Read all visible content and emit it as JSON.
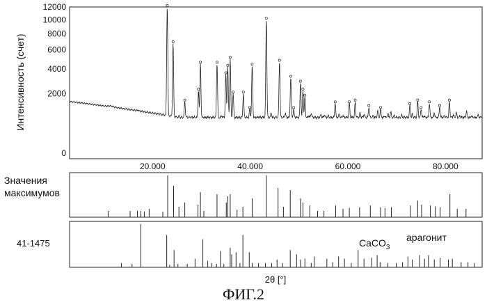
{
  "caption": "ФИГ.2",
  "chart_data": [
    {
      "type": "line",
      "ylabel": "Интенсивность (счет)",
      "xlim": [
        3,
        87.5
      ],
      "y_ticks": [
        0,
        2000,
        4000,
        6000,
        8000,
        10000,
        12000
      ],
      "y_scale": "sqrt",
      "grid": false,
      "series": [
        {
          "points": [
            [
              3,
              1500
            ],
            [
              5,
              1300
            ],
            [
              7,
              1100
            ],
            [
              9,
              900
            ],
            [
              10.5,
              920
            ],
            [
              11.5,
              1250
            ],
            [
              12.2,
              1150
            ],
            [
              13.5,
              870
            ],
            [
              16.2,
              800
            ],
            [
              17,
              1050
            ],
            [
              17.8,
              760
            ],
            [
              18.8,
              920
            ],
            [
              19.6,
              880
            ],
            [
              20.9,
              700
            ],
            [
              22,
              720
            ],
            [
              23,
              12000
            ],
            [
              24.2,
              6800
            ],
            [
              25.5,
              800
            ],
            [
              26.6,
              1500
            ],
            [
              28,
              680
            ],
            [
              29.4,
              2200
            ],
            [
              29.8,
              4500
            ],
            [
              31.3,
              700
            ],
            [
              33.2,
              4500
            ],
            [
              34.2,
              800
            ],
            [
              35,
              3500
            ],
            [
              35.4,
              4200
            ],
            [
              35.9,
              5000
            ],
            [
              36.5,
              2000
            ],
            [
              37.3,
              700
            ],
            [
              38.6,
              2000
            ],
            [
              39.9,
              1100
            ],
            [
              40.4,
              4300
            ],
            [
              41.5,
              700
            ],
            [
              43.3,
              10000
            ],
            [
              44.3,
              900
            ],
            [
              46,
              4700
            ],
            [
              47.2,
              900
            ],
            [
              48.3,
              3200
            ],
            [
              48.9,
              1100
            ],
            [
              50.3,
              2800
            ],
            [
              50.8,
              2200
            ],
            [
              51.2,
              1800
            ],
            [
              52,
              800
            ],
            [
              52.5,
              900
            ],
            [
              53.5,
              700
            ],
            [
              54.5,
              850
            ],
            [
              55.2,
              850
            ],
            [
              56,
              800
            ],
            [
              56.8,
              700
            ],
            [
              57.4,
              1400
            ],
            [
              58.2,
              850
            ],
            [
              59,
              800
            ],
            [
              60.3,
              1400
            ],
            [
              61.5,
              1500
            ],
            [
              62.5,
              900
            ],
            [
              63.3,
              850
            ],
            [
              64.3,
              1200
            ],
            [
              65.2,
              800
            ],
            [
              66.1,
              1000
            ],
            [
              66.7,
              1100
            ],
            [
              67.5,
              800
            ],
            [
              68.2,
              900
            ],
            [
              68.8,
              950
            ],
            [
              69.5,
              800
            ],
            [
              71,
              800
            ],
            [
              72.7,
              1300
            ],
            [
              73.2,
              850
            ],
            [
              74.3,
              1500
            ],
            [
              75,
              1100
            ],
            [
              75.6,
              800
            ],
            [
              76.7,
              1400
            ],
            [
              77.7,
              900
            ],
            [
              78.8,
              1200
            ],
            [
              79.8,
              800
            ],
            [
              80.8,
              1500
            ],
            [
              81.6,
              850
            ],
            [
              82.2,
              900
            ],
            [
              83,
              800
            ],
            [
              84.3,
              1000
            ],
            [
              85.3,
              800
            ],
            [
              86.7,
              850
            ],
            [
              87.5,
              800
            ]
          ]
        }
      ]
    },
    {
      "type": "bar",
      "label": "Значения максимумов",
      "x": [
        10.9,
        15.4,
        16.9,
        17.6,
        18.3,
        19.3,
        22.1,
        23.1,
        24.3,
        25.4,
        26.6,
        29.3,
        29.8,
        30.5,
        33.2,
        35.1,
        35.4,
        35.9,
        37.3,
        38.5,
        40.4,
        43.3,
        45.7,
        46.8,
        48.2,
        50.3,
        50.8,
        52.2,
        53.8,
        55.1,
        57.5,
        59.0,
        60.3,
        62.4,
        64.6,
        66.7,
        67.6,
        68.9,
        72.8,
        74.3,
        75.1,
        76.9,
        77.9,
        78.9,
        80.9,
        82.4,
        84.2
      ],
      "values": [
        15,
        15,
        15,
        15,
        14,
        20,
        13,
        100,
        75,
        25,
        35,
        30,
        60,
        15,
        55,
        35,
        50,
        55,
        18,
        25,
        45,
        100,
        70,
        25,
        65,
        45,
        35,
        28,
        15,
        15,
        28,
        20,
        22,
        24,
        28,
        24,
        22,
        24,
        28,
        40,
        30,
        28,
        26,
        24,
        55,
        20,
        20
      ]
    },
    {
      "type": "bar",
      "label": "41-1475",
      "annotations": [
        "CaCO",
        "3",
        "арагонит"
      ],
      "x": [
        13.6,
        15.8,
        17.6,
        22.9,
        23.5,
        24.4,
        25.2,
        27.1,
        28.7,
        30.3,
        31.3,
        32.1,
        33.1,
        33.9,
        34.6,
        35.9,
        36.2,
        37.1,
        37.9,
        38.5,
        39.8,
        40.4,
        41.7,
        43.1,
        44.4,
        45.5,
        46.6,
        48.2,
        49.5,
        50.3,
        51.2,
        52.5,
        53.1,
        55.7,
        56.9,
        58.1,
        59.3,
        60.7,
        62.1,
        63.3,
        64.9,
        66.0,
        66.6,
        68.2,
        69.9,
        71.2,
        72.3,
        73.2,
        74.7,
        75.7,
        76.5,
        77.7,
        78.9,
        80.6,
        81.4,
        83.2,
        84.6,
        85.9
      ],
      "values": [
        10,
        8,
        100,
        75,
        6,
        40,
        8,
        8,
        20,
        65,
        15,
        10,
        8,
        38,
        8,
        45,
        30,
        35,
        10,
        75,
        35,
        10,
        10,
        10,
        10,
        18,
        10,
        40,
        30,
        18,
        20,
        10,
        25,
        20,
        12,
        25,
        20,
        10,
        40,
        20,
        22,
        28,
        12,
        10,
        10,
        12,
        25,
        18,
        28,
        20,
        28,
        18,
        22,
        18,
        20,
        12,
        12,
        10
      ]
    }
  ],
  "axis": {
    "x_ticks": [
      20,
      40,
      60,
      80
    ],
    "x_tick_labels": [
      "20.000",
      "40.000",
      "60.000",
      "80.000"
    ],
    "x_label": "2θ [°]"
  }
}
